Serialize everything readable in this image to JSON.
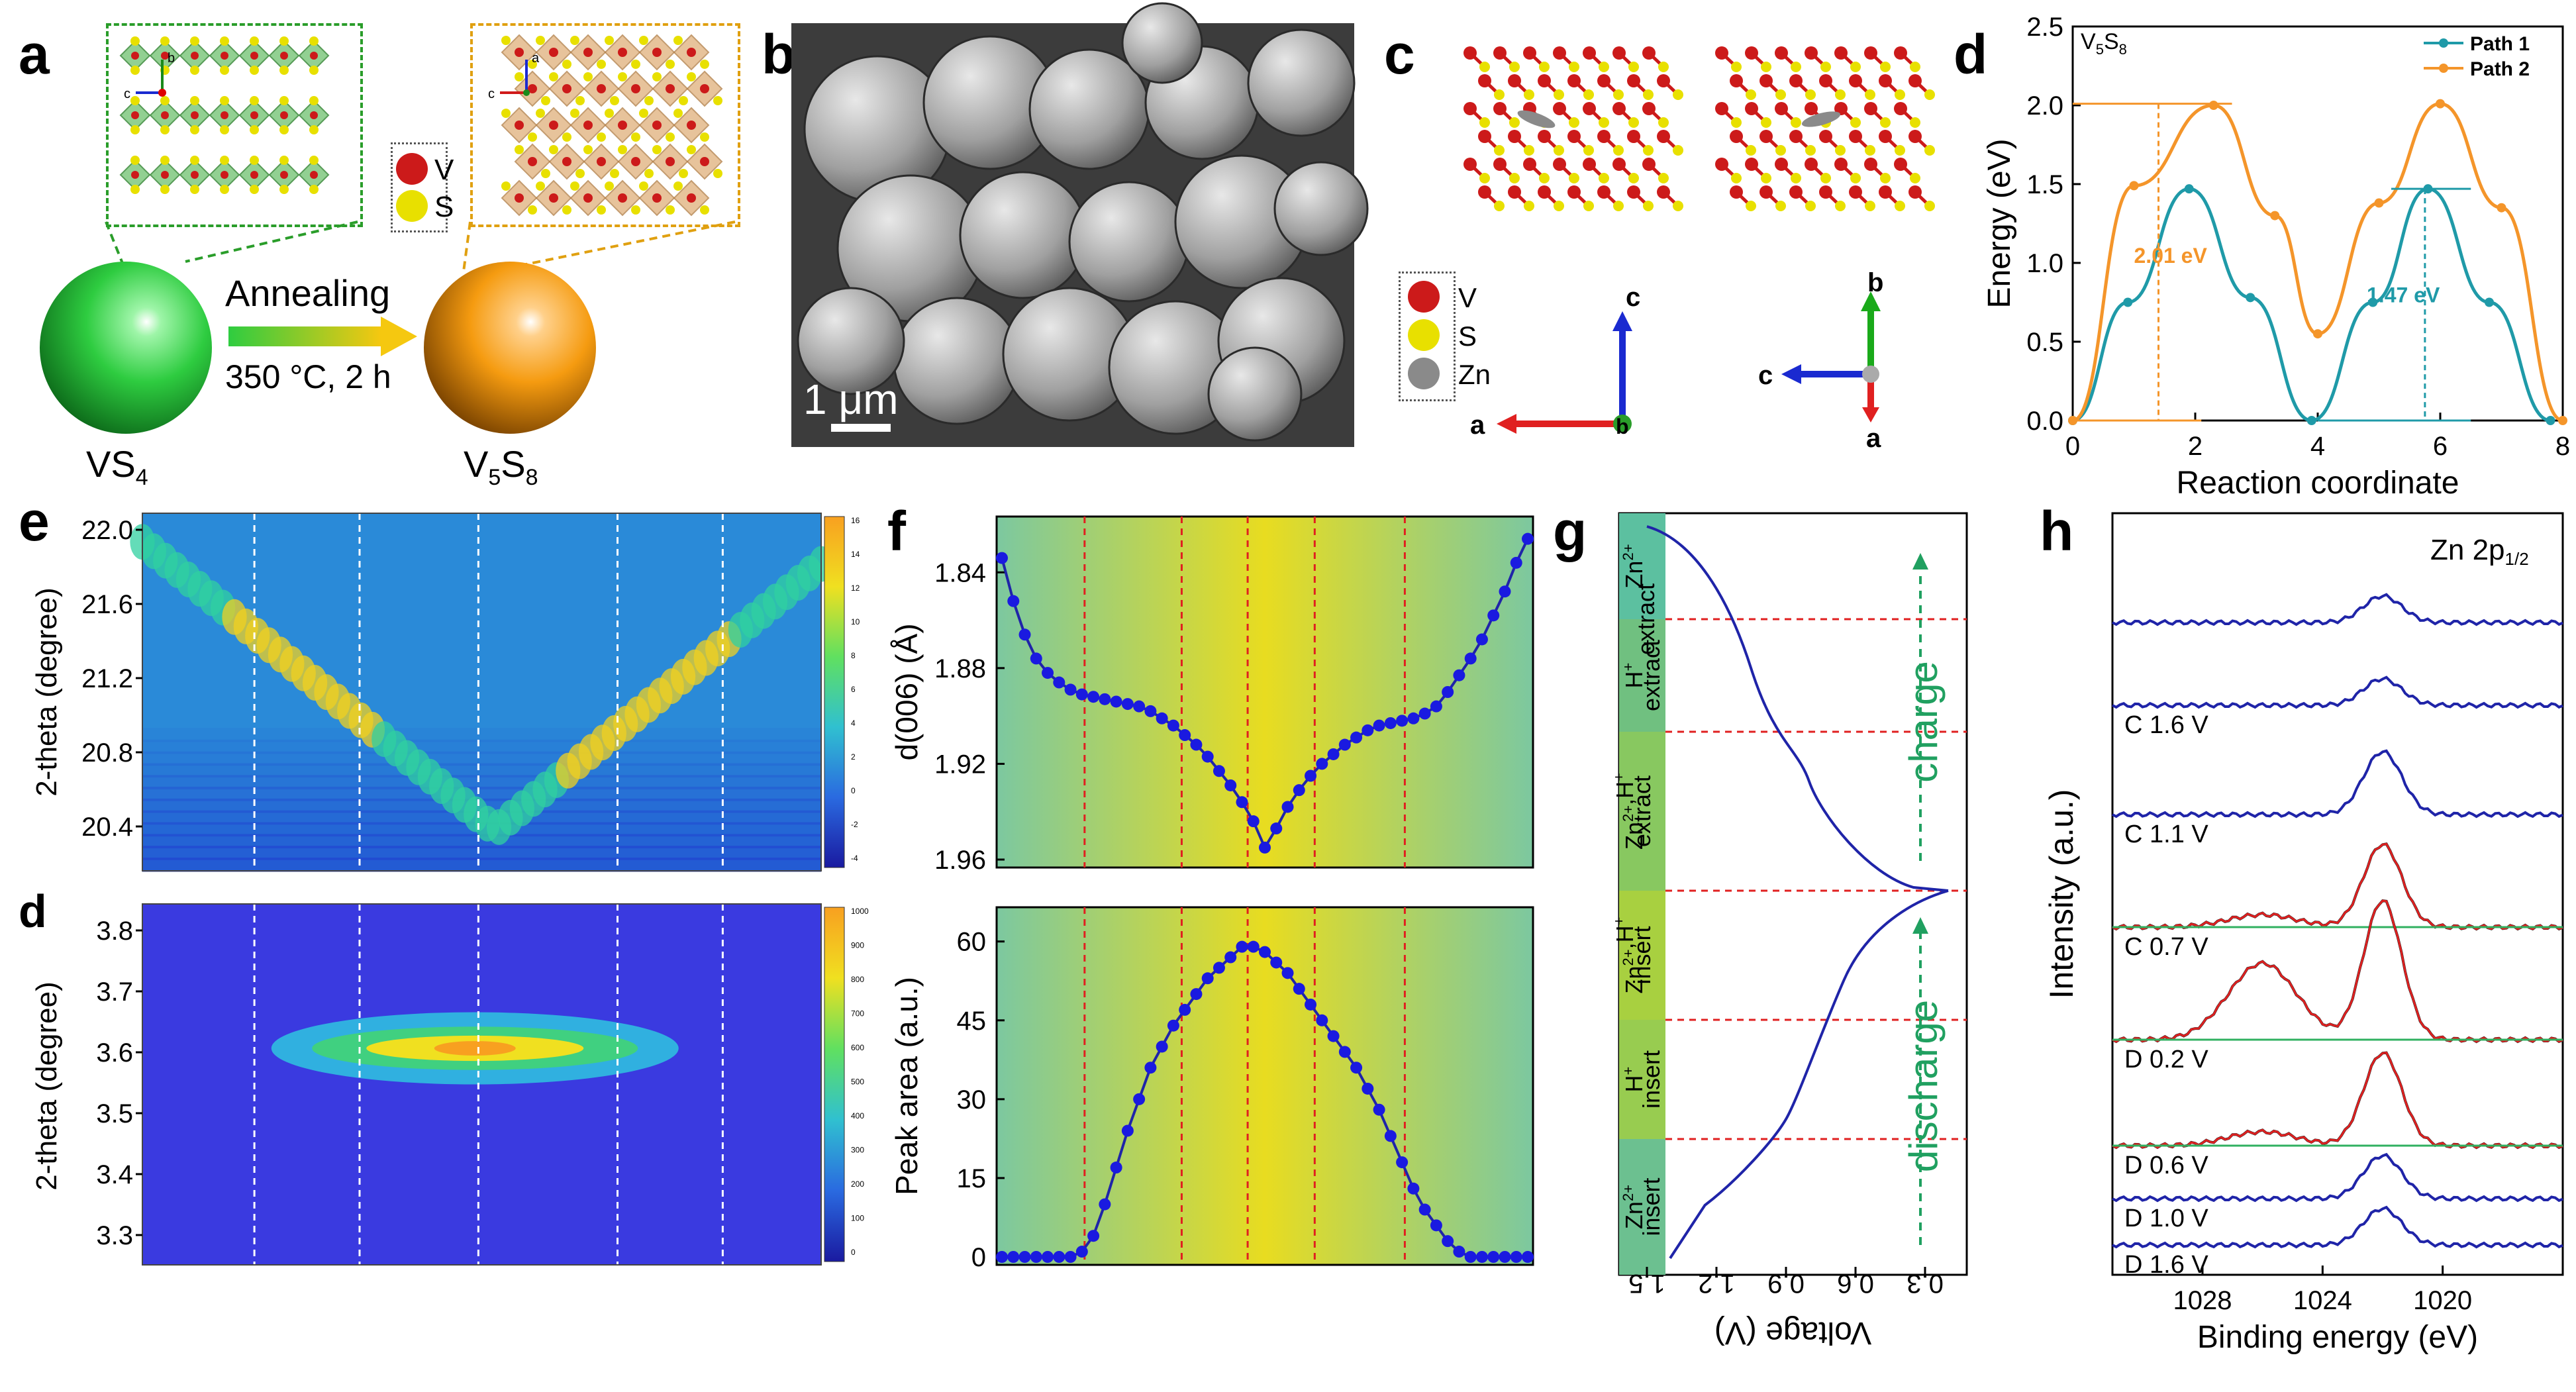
{
  "panel_labels": {
    "a": "a",
    "b": "b",
    "c": "c",
    "d": "d",
    "e": "e",
    "f": "f",
    "g": "g",
    "h": "h"
  },
  "colors": {
    "vanadium": "#cc1a1a",
    "sulfur": "#e8e000",
    "zinc": "#8a8a8a",
    "vs4_sphere": "#2ecc40",
    "v5s8_sphere": "#f59b10",
    "path1": "#1f9aa8",
    "path2": "#f4952a",
    "curve": "#1f24a8",
    "red_dash": "#e02020",
    "green_dash": "#20a060"
  },
  "panel_a": {
    "legend": {
      "v": "V",
      "s": "S"
    },
    "arrow_top": "Annealing",
    "arrow_bottom": "350 °C, 2 h",
    "left_label": "VS",
    "left_sub": "4",
    "right_label": "V",
    "right_sub1": "5",
    "right_mid": "S",
    "right_sub2": "8",
    "axes_left": {
      "b": "b",
      "c": "c"
    },
    "axes_right": {
      "a": "a",
      "c": "c"
    }
  },
  "panel_b": {
    "scale_bar": "1 μm"
  },
  "panel_c": {
    "legend": {
      "v": "V",
      "s": "S",
      "zn": "Zn"
    },
    "axes_left": {
      "up": "c",
      "left": "a",
      "center": "b"
    },
    "axes_right": {
      "up": "b",
      "left": "c",
      "down": "a"
    }
  },
  "panel_d": {
    "chart_data": {
      "type": "line",
      "title": "V5S8",
      "title_main": "V",
      "title_sub1": "5",
      "title_mid": "S",
      "title_sub2": "8",
      "xlabel": "Reaction coordinate",
      "ylabel": "Energy (eV)",
      "xlim": [
        0,
        8
      ],
      "ylim": [
        0,
        2.5
      ],
      "xticks": [
        "0",
        "2",
        "4",
        "6",
        "8"
      ],
      "yticks": [
        "0.0",
        "0.5",
        "1.0",
        "1.5",
        "2.0",
        "2.5"
      ],
      "series": [
        {
          "name": "Path 1",
          "x": [
            0,
            0.9,
            1.9,
            2.9,
            3.9,
            4.9,
            5.8,
            6.8,
            7.8
          ],
          "values": [
            0,
            0.75,
            1.47,
            0.78,
            0,
            0.75,
            1.47,
            0.75,
            0
          ]
        },
        {
          "name": "Path 2",
          "x": [
            0,
            1.0,
            2.3,
            3.3,
            4.0,
            5.0,
            6.0,
            7.0,
            8.0
          ],
          "values": [
            0,
            1.49,
            2.0,
            1.3,
            0.55,
            1.38,
            2.01,
            1.35,
            0
          ]
        }
      ],
      "annotations": [
        "2.01 eV",
        "1.47 eV"
      ]
    }
  },
  "panel_e": {
    "top": {
      "ylabel": "2-theta (degree)",
      "yticks": [
        "22.0",
        "21.6",
        "21.2",
        "20.8",
        "20.4"
      ],
      "colorbar": [
        "16",
        "14",
        "12",
        "10",
        "8",
        "6",
        "4",
        "2",
        "0",
        "-2",
        "-4"
      ]
    },
    "bottom": {
      "tag": "d",
      "ylabel": "2-theta (degree)",
      "yticks": [
        "3.8",
        "3.7",
        "3.6",
        "3.5",
        "3.4",
        "3.3"
      ],
      "colorbar": [
        "1000",
        "900",
        "800",
        "700",
        "600",
        "500",
        "400",
        "300",
        "200",
        "100",
        "0"
      ]
    }
  },
  "panel_f": {
    "chart_data": [
      {
        "type": "line",
        "ylabel": "d(006) (Å)",
        "ylim": [
          1.96,
          1.82
        ],
        "yticks": [
          "1.84",
          "1.88",
          "1.92",
          "1.96"
        ],
        "values": [
          1.834,
          1.852,
          1.866,
          1.876,
          1.882,
          1.886,
          1.889,
          1.891,
          1.892,
          1.893,
          1.894,
          1.895,
          1.896,
          1.898,
          1.901,
          1.904,
          1.908,
          1.912,
          1.917,
          1.923,
          1.929,
          1.936,
          1.944,
          1.955,
          1.947,
          1.938,
          1.931,
          1.925,
          1.92,
          1.916,
          1.912,
          1.909,
          1.906,
          1.904,
          1.903,
          1.902,
          1.901,
          1.899,
          1.896,
          1.89,
          1.883,
          1.876,
          1.868,
          1.858,
          1.848,
          1.836,
          1.826
        ]
      },
      {
        "type": "line",
        "ylabel": "Peak area (a.u.)",
        "ylim": [
          0,
          65
        ],
        "yticks": [
          "0",
          "15",
          "30",
          "45",
          "60"
        ],
        "values": [
          0,
          0,
          0,
          0,
          0,
          0,
          0,
          1,
          4,
          10,
          17,
          24,
          30,
          36,
          40,
          44,
          47,
          50,
          53,
          55,
          57,
          59,
          59,
          58,
          56,
          54,
          51,
          48,
          45,
          42,
          39,
          36,
          32,
          28,
          23,
          18,
          13,
          9,
          6,
          3,
          1,
          0,
          0,
          0,
          0,
          0,
          0
        ]
      }
    ]
  },
  "panel_g": {
    "xlabel": "Voltage (V)",
    "xticks": [
      "1.5",
      "1.2",
      "0.9",
      "0.6",
      "0.3"
    ],
    "charge": "charge",
    "discharge": "discharge",
    "bands": [
      {
        "ion": "Zn",
        "sup": "2+",
        "action": ""
      },
      {
        "ion": "H",
        "sup": "+",
        "action": "extract"
      },
      {
        "ion": "Zn",
        "sup": "2+",
        "ion2": ",H",
        "sup2": "+",
        "action": "extract"
      },
      {
        "ion": "Zn",
        "sup": "2+",
        "ion2": ",H",
        "sup2": "+",
        "action": "insert"
      },
      {
        "ion": "H",
        "sup": "+",
        "action": "insert"
      },
      {
        "ion": "Zn",
        "sup": "2+",
        "action": "insert"
      }
    ],
    "extract_top": "extract"
  },
  "panel_h": {
    "title_main": "Zn 2p",
    "title_sub": "1/2",
    "xlabel": "Binding energy (eV)",
    "ylabel": "Intensity (a.u.)",
    "xticks": [
      "1028",
      "1024",
      "1020"
    ],
    "traces": [
      "C 1.6 V",
      "C 1.1 V",
      "C 0.7 V",
      "D 0.2 V",
      "D 0.6 V",
      "D 1.0 V",
      "D 1.6 V"
    ]
  }
}
